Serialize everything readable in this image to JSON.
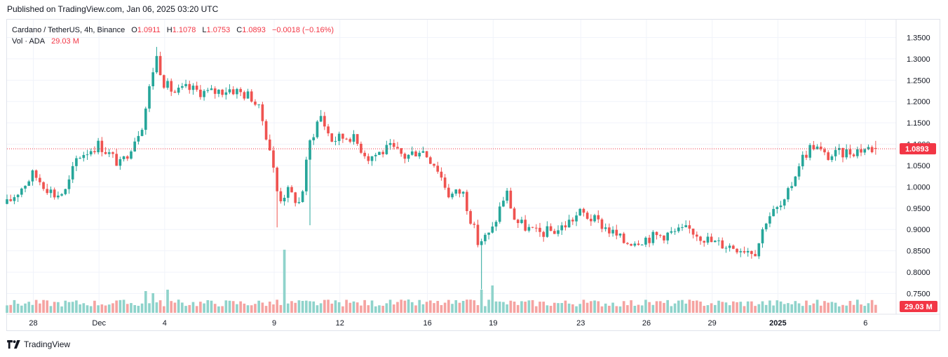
{
  "header": {
    "published": "Published on TradingView.com, Jan 06, 2025 03:20 UTC"
  },
  "legend": {
    "symbol": "Cardano / TetherUS, 4h, Binance",
    "o_key": "O",
    "o_val": "1.0911",
    "h_key": "H",
    "h_val": "1.1078",
    "l_key": "L",
    "l_val": "1.0753",
    "c_key": "C",
    "c_val": "1.0893",
    "change": "−0.0018 (−0.16%)",
    "vol_label": "Vol · ADA",
    "vol_val": "29.03 M"
  },
  "footer": {
    "brand": "TradingView"
  },
  "colors": {
    "up": "#26a69a",
    "down": "#ef5350",
    "vol_up": "#8fd3cb",
    "vol_down": "#f5a3a1",
    "price_label": "#f23645",
    "grid": "#f0f3fa"
  },
  "chart_data": {
    "type": "candlestick",
    "title": "Cardano / TetherUS, 4h, Binance",
    "ylim": [
      0.7,
      1.37
    ],
    "y_ticks": [
      "1.3500",
      "1.3000",
      "1.2500",
      "1.2000",
      "1.1500",
      "1.1000",
      "1.0500",
      "1.0000",
      "0.9500",
      "0.9000",
      "0.8500",
      "0.8000",
      "0.7500"
    ],
    "x_ticks": [
      "28",
      "Dec",
      "4",
      "9",
      "12",
      "16",
      "19",
      "23",
      "26",
      "29",
      "2025",
      "6"
    ],
    "x_tick_days": [
      0,
      3,
      6,
      11,
      14,
      18,
      21,
      25,
      28,
      31,
      34,
      38
    ],
    "x_range_days": [
      -1.2,
      39.4
    ],
    "last_price": "1.0893",
    "last_volume": "29.03 M",
    "close_anchors": [
      [
        -1.2,
        0.96
      ],
      [
        0.0,
        1.03
      ],
      [
        1.0,
        0.98
      ],
      [
        1.5,
        0.99
      ],
      [
        2.0,
        1.07
      ],
      [
        3.0,
        1.1
      ],
      [
        4.0,
        1.05
      ],
      [
        5.0,
        1.15
      ],
      [
        5.6,
        1.31
      ],
      [
        6.0,
        1.24
      ],
      [
        6.5,
        1.22
      ],
      [
        7.0,
        1.23
      ],
      [
        8.0,
        1.22
      ],
      [
        9.0,
        1.23
      ],
      [
        10.0,
        1.21
      ],
      [
        10.4,
        1.17
      ],
      [
        10.8,
        1.09
      ],
      [
        11.2,
        0.97
      ],
      [
        11.6,
        0.99
      ],
      [
        12.2,
        0.96
      ],
      [
        12.6,
        1.1
      ],
      [
        13.1,
        1.17
      ],
      [
        13.6,
        1.11
      ],
      [
        14.5,
        1.12
      ],
      [
        15.3,
        1.07
      ],
      [
        16.3,
        1.09
      ],
      [
        17.0,
        1.07
      ],
      [
        17.7,
        1.09
      ],
      [
        18.4,
        1.05
      ],
      [
        19.0,
        0.98
      ],
      [
        19.6,
        0.99
      ],
      [
        20.3,
        0.87
      ],
      [
        20.9,
        0.89
      ],
      [
        21.3,
        0.95
      ],
      [
        21.6,
        0.99
      ],
      [
        22.0,
        0.92
      ],
      [
        23.0,
        0.89
      ],
      [
        24.0,
        0.9
      ],
      [
        25.0,
        0.94
      ],
      [
        26.0,
        0.91
      ],
      [
        27.0,
        0.87
      ],
      [
        28.0,
        0.88
      ],
      [
        29.0,
        0.89
      ],
      [
        30.0,
        0.9
      ],
      [
        31.0,
        0.87
      ],
      [
        32.0,
        0.86
      ],
      [
        33.0,
        0.85
      ],
      [
        33.5,
        0.93
      ],
      [
        34.3,
        0.96
      ],
      [
        35.0,
        1.06
      ],
      [
        35.6,
        1.1
      ],
      [
        36.2,
        1.07
      ],
      [
        37.0,
        1.08
      ],
      [
        38.0,
        1.09
      ],
      [
        38.6,
        1.0893
      ]
    ],
    "volume_spikes": [
      [
        5.2,
        31
      ],
      [
        5.5,
        28
      ],
      [
        6.2,
        33
      ],
      [
        11.4,
        90
      ],
      [
        20.4,
        33
      ],
      [
        21.0,
        39
      ]
    ]
  }
}
